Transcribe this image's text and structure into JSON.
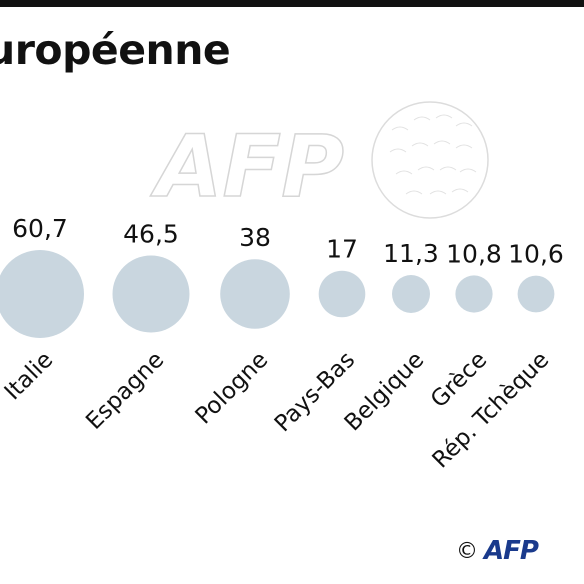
{
  "title": "uropéenne",
  "credit": {
    "symbol": "©",
    "logo": "AFP"
  },
  "watermark": "AFP",
  "colors": {
    "bubble": "#c9d6df",
    "text": "#111111",
    "logo": "#1a3a8c"
  },
  "chart_data": {
    "type": "bubble",
    "title": "uropéenne",
    "categories": [
      "Italie",
      "Espagne",
      "Pologne",
      "Pays-Bas",
      "Belgique",
      "Grèce",
      "Rép. Tchèque"
    ],
    "values": [
      60.7,
      46.5,
      38,
      17,
      11.3,
      10.8,
      10.6
    ],
    "value_labels": [
      "60,7",
      "46,5",
      "38",
      "17",
      "11,3",
      "10,8",
      "10,6"
    ]
  }
}
